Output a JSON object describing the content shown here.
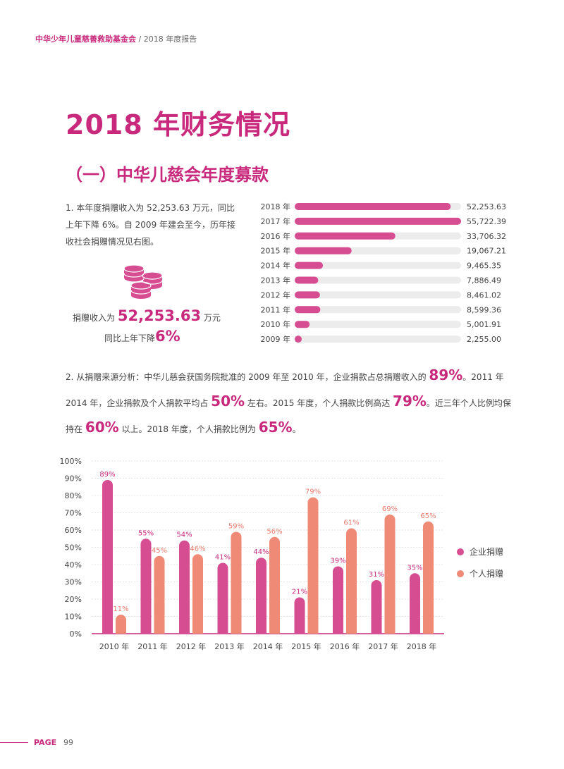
{
  "header": {
    "org": "中华少年儿童慈善救助基金会",
    "sep": " / ",
    "report": "2018 年度报告"
  },
  "title": "2018 年财务情况",
  "subtitle": "（一）中华儿慈会年度募款",
  "para1": "1. 本年度捐赠收入为 52,253.63 万元，同比上年下降 6%。自 2009 年建会至今，历年接收社会捐赠情况见右图。",
  "stat": {
    "income_label": "捐赠收入为",
    "income_value": "52,253.63",
    "income_unit": "万元",
    "change_label": "同比上年下降",
    "change_value": "6%"
  },
  "para2": {
    "t1": "2. 从捐赠来源分析：中华儿慈会获国务院批准的 2009 年至 2010 年，企业捐款占总捐赠收入的 ",
    "e1": "89%",
    "t2": "。2011 年 2014 年，企业捐款及个人捐款平均占 ",
    "e2": "50%",
    "t3": " 左右。2015 年度，个人捐款比例高达 ",
    "e3": "79%",
    "t4": "。近三年个人比例均保持在 ",
    "e4": "60%",
    "t5": " 以上。2018 年度，个人捐款比例为 ",
    "e5": "65%",
    "t6": "。"
  },
  "footer": {
    "label": "PAGE",
    "page": "99"
  },
  "colors": {
    "accent": "#c8297c",
    "bar_pink": "#d64d92",
    "bar_orange": "#ef8a77",
    "track": "#ececec"
  },
  "chart_data": [
    {
      "type": "bar",
      "orientation": "horizontal",
      "categories": [
        "2018 年",
        "2017 年",
        "2016 年",
        "2015 年",
        "2014 年",
        "2013 年",
        "2012 年",
        "2011 年",
        "2010 年",
        "2009 年"
      ],
      "values": [
        52253.63,
        55722.39,
        33706.32,
        19067.21,
        9465.35,
        7886.49,
        8461.02,
        8599.36,
        5001.91,
        2255.0
      ],
      "value_labels": [
        "52,253.63",
        "55,722.39",
        "33,706.32",
        "19,067.21",
        "9,465.35",
        "7,886.49",
        "8,461.02",
        "8,599.36",
        "5,001.91",
        "2,255.00"
      ],
      "xlim": [
        0,
        55722.39
      ]
    },
    {
      "type": "bar",
      "orientation": "vertical",
      "categories": [
        "2010 年",
        "2011 年",
        "2012 年",
        "2013 年",
        "2014 年",
        "2015 年",
        "2016 年",
        "2017 年",
        "2018 年"
      ],
      "series": [
        {
          "name": "企业捐赠",
          "values": [
            89,
            55,
            54,
            41,
            44,
            21,
            39,
            31,
            35
          ],
          "color": "#d64d92"
        },
        {
          "name": "个人捐赠",
          "values": [
            11,
            45,
            46,
            59,
            56,
            79,
            61,
            69,
            65
          ],
          "color": "#ef8a77"
        }
      ],
      "yticks": [
        "0%",
        "10%",
        "20%",
        "30%",
        "40%",
        "50%",
        "60%",
        "70%",
        "80%",
        "90%",
        "100%"
      ],
      "ylim": [
        0,
        100
      ],
      "grid": true,
      "legend": "right"
    }
  ]
}
